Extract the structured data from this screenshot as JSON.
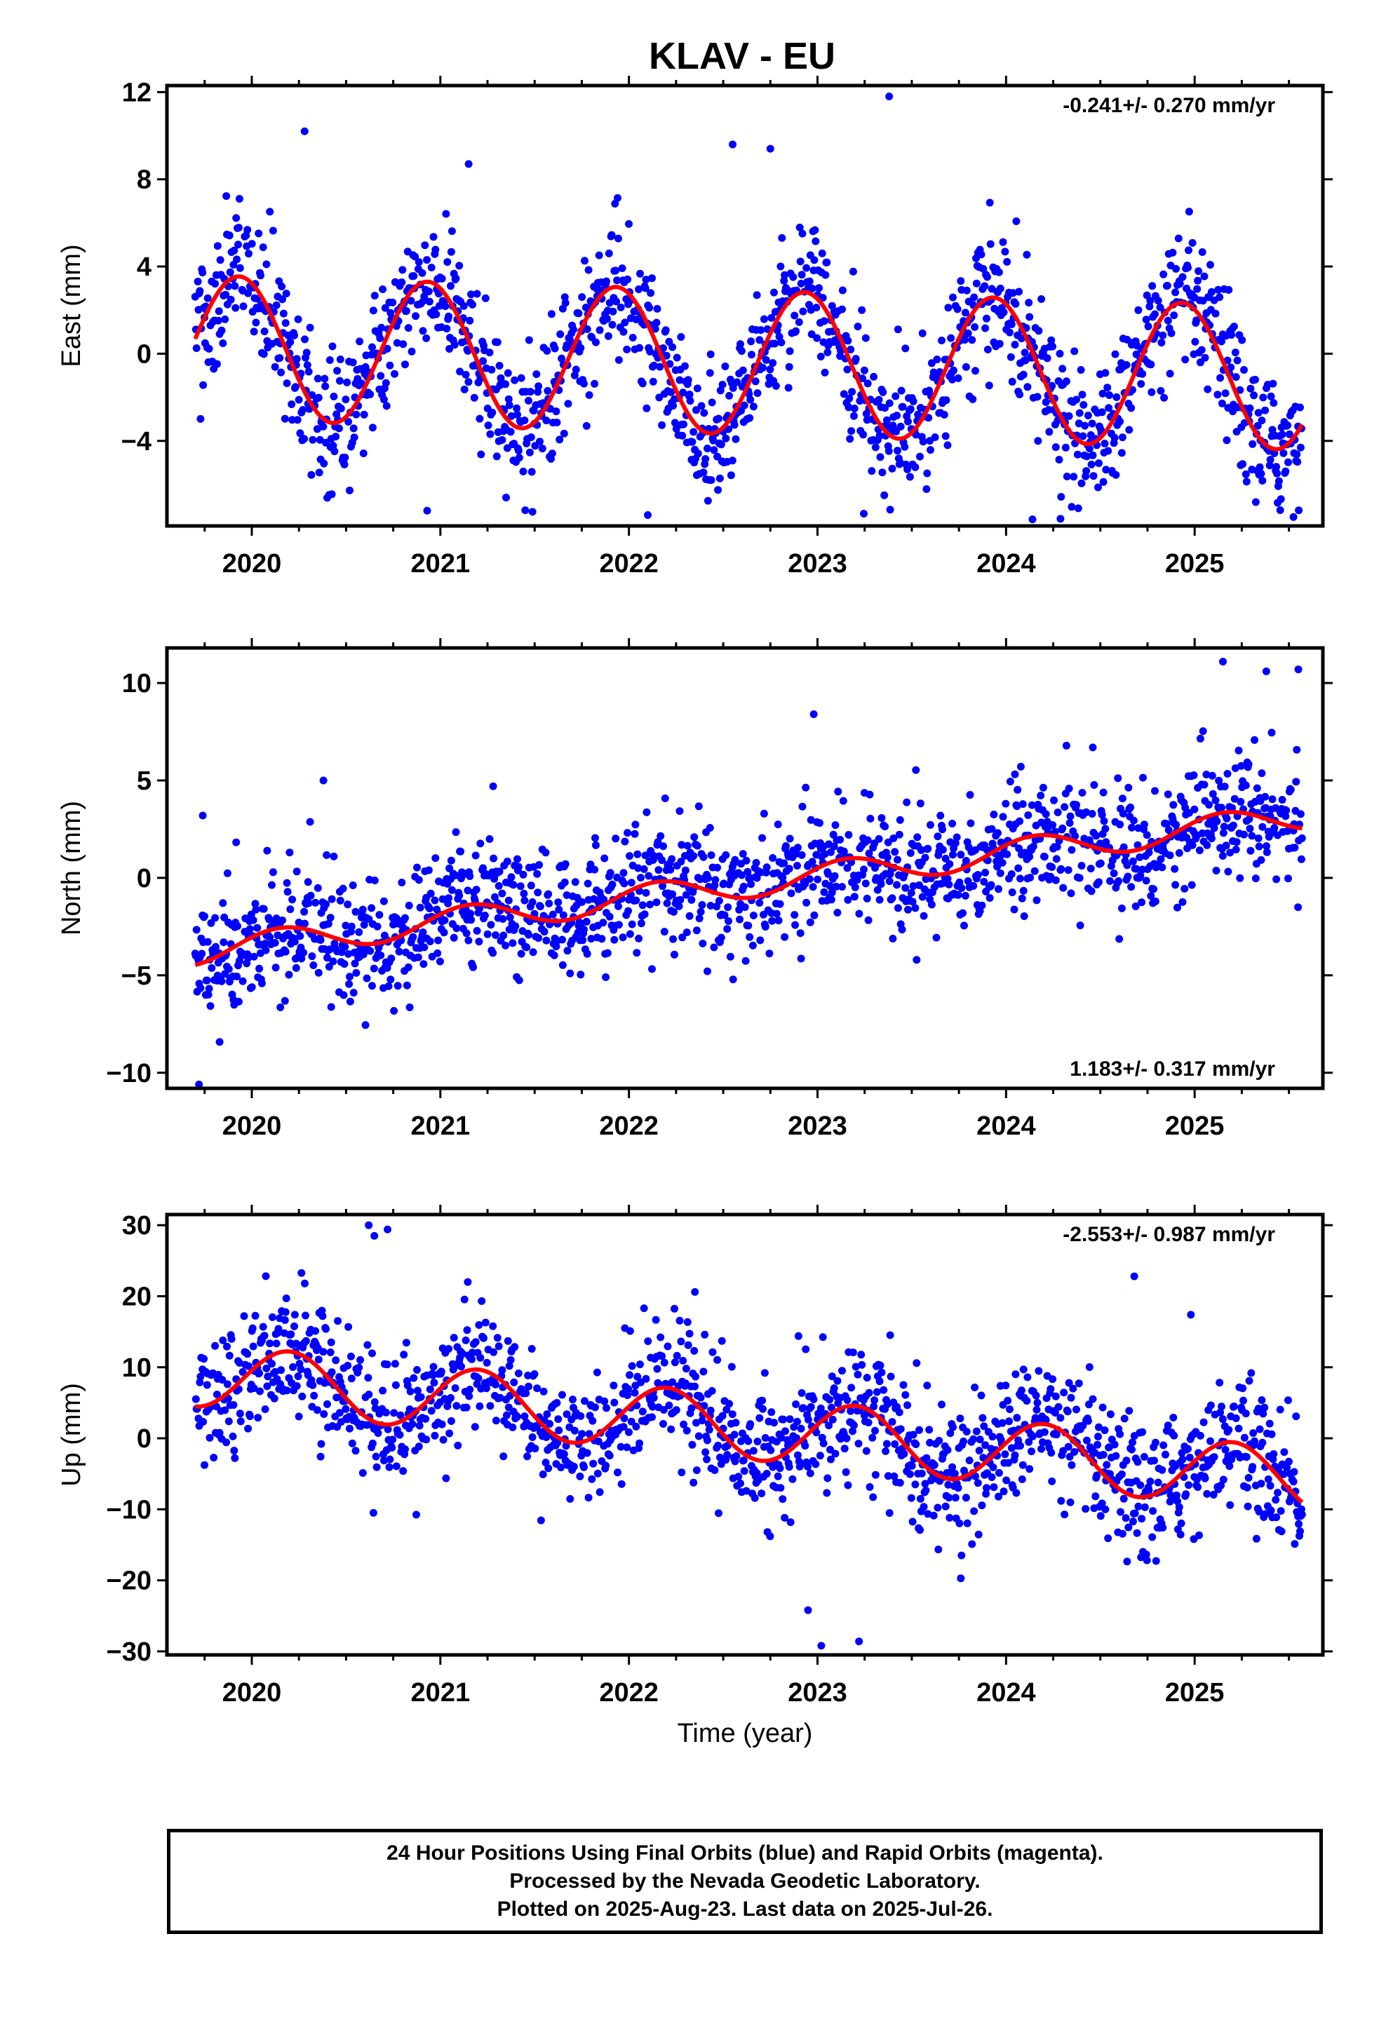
{
  "title": "KLAV - EU",
  "colors": {
    "points": "#0000ff",
    "fit": "#ff0000",
    "axes": "#000000"
  },
  "chart_data": [
    {
      "type": "scatter",
      "name": "east",
      "ylabel": "East (mm)",
      "xlabel": "",
      "xlim": [
        2019.55,
        2025.68
      ],
      "ylim": [
        -7.9,
        12.3
      ],
      "yticks": [
        12,
        8,
        4,
        0,
        -4
      ],
      "xticks": [
        2020,
        2021,
        2022,
        2023,
        2024,
        2025
      ],
      "rate_text": "-0.241+/- 0.270 mm/yr",
      "rate_position": "top-right",
      "fit": {
        "offset": 0.3,
        "rate": -0.241,
        "amplitude": 3.3,
        "phase": 2.0
      },
      "point_scatter_sd": 1.5,
      "outliers": [
        [
          2020.28,
          10.2
        ],
        [
          2023.38,
          11.8
        ],
        [
          2021.15,
          8.7
        ],
        [
          2022.55,
          9.6
        ],
        [
          2022.75,
          9.4
        ],
        [
          2020.93,
          -7.2
        ],
        [
          2022.1,
          -7.4
        ],
        [
          2024.14,
          -7.6
        ]
      ]
    },
    {
      "type": "scatter",
      "name": "north",
      "ylabel": "North (mm)",
      "xlabel": "",
      "xlim": [
        2019.55,
        2025.68
      ],
      "ylim": [
        -10.8,
        11.8
      ],
      "yticks": [
        10,
        5,
        0,
        -5,
        -10
      ],
      "xticks": [
        2020,
        2021,
        2022,
        2023,
        2024,
        2025
      ],
      "rate_text": "1.183+/- 0.317 mm/yr",
      "rate_position": "bottom-right",
      "fit": {
        "offset": -3.8,
        "rate": 1.183,
        "amplitude": 0.7,
        "phase": 0.6
      },
      "point_scatter_sd": 1.6,
      "outliers": [
        [
          2019.72,
          -10.6
        ],
        [
          2019.74,
          3.2
        ],
        [
          2025.15,
          11.1
        ],
        [
          2025.38,
          10.6
        ],
        [
          2025.55,
          10.7
        ],
        [
          2022.98,
          8.4
        ],
        [
          2020.38,
          5.0
        ],
        [
          2021.28,
          4.7
        ]
      ]
    },
    {
      "type": "scatter",
      "name": "up",
      "ylabel": "Up (mm)",
      "xlabel": "Time (year)",
      "xlim": [
        2019.55,
        2025.68
      ],
      "ylim": [
        -30.5,
        31.5
      ],
      "yticks": [
        30,
        20,
        10,
        0,
        -10,
        -20,
        -30
      ],
      "xticks": [
        2020,
        2021,
        2022,
        2023,
        2024,
        2025
      ],
      "rate_text": "-2.553+/- 0.987 mm/yr",
      "rate_position": "top-right",
      "fit": {
        "offset": 9.0,
        "rate": -2.553,
        "amplitude": 4.5,
        "phase": 0.3
      },
      "point_scatter_sd": 4.5,
      "outliers": [
        [
          2020.62,
          30.0
        ],
        [
          2020.72,
          29.4
        ],
        [
          2020.65,
          28.5
        ],
        [
          2023.02,
          -29.2
        ],
        [
          2023.22,
          -28.6
        ],
        [
          2022.95,
          -24.2
        ],
        [
          2024.68,
          22.8
        ],
        [
          2024.98,
          17.4
        ],
        [
          2022.35,
          20.6
        ]
      ]
    }
  ],
  "footer": {
    "line1": "24 Hour Positions Using Final Orbits (blue) and Rapid Orbits (magenta).",
    "line2": "Processed by the Nevada Geodetic Laboratory.",
    "line3": "Plotted on 2025-Aug-23. Last data on 2025-Jul-26."
  }
}
